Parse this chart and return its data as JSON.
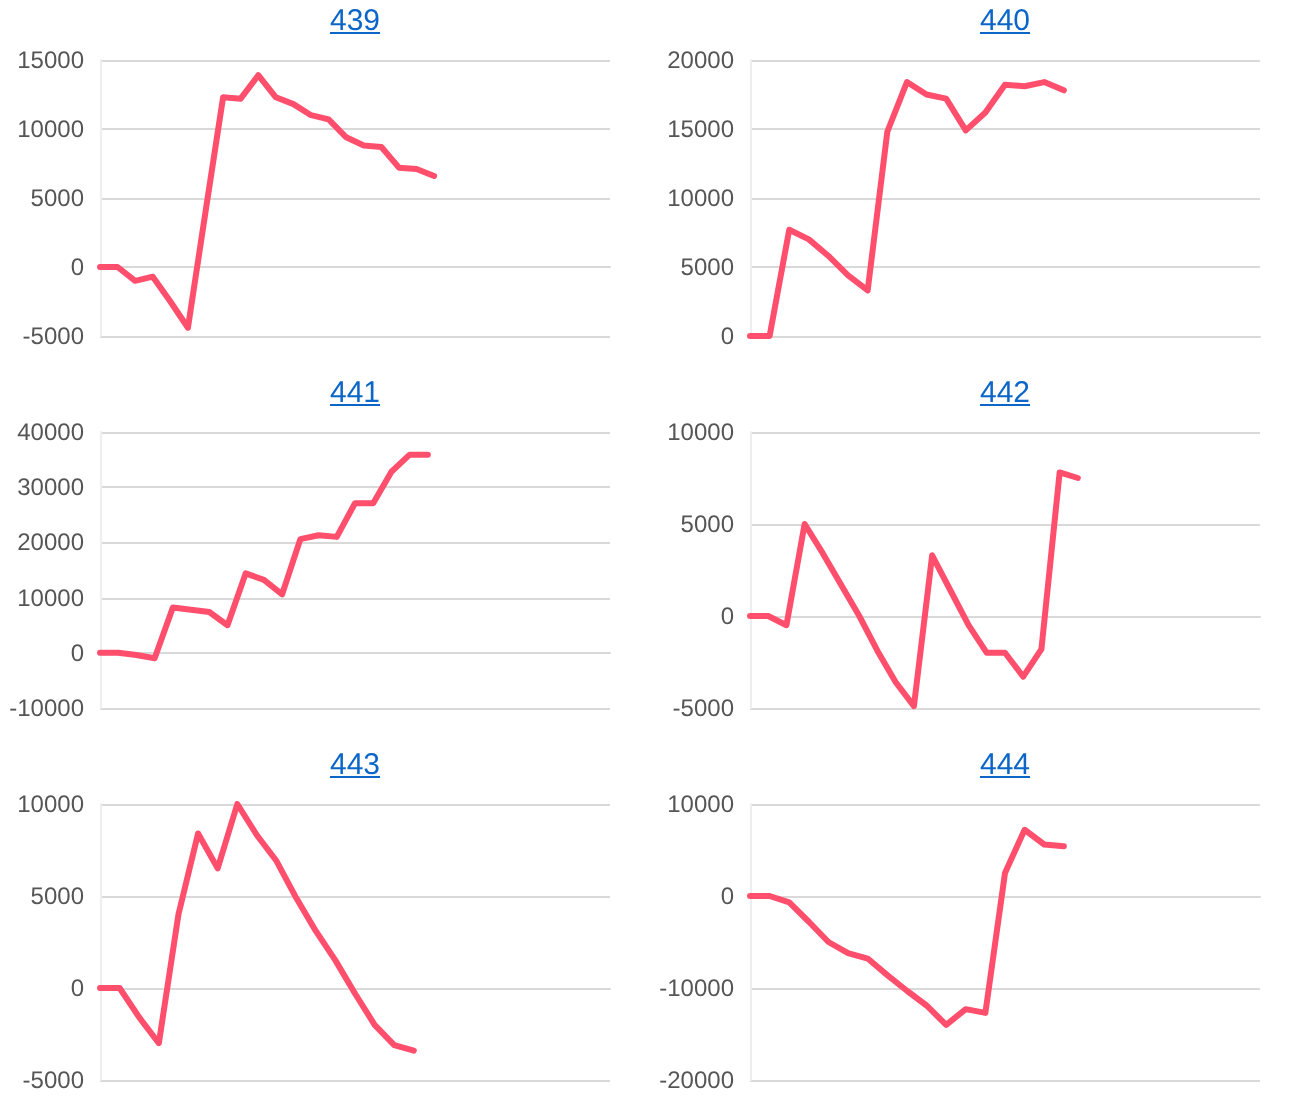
{
  "chart_data": [
    {
      "type": "line",
      "title": "439",
      "categories": [
        null,
        null,
        null,
        null,
        null,
        null,
        null,
        null,
        null,
        null,
        null,
        null,
        null,
        null,
        null,
        null,
        null,
        null,
        null,
        null,
        null,
        null,
        null,
        null,
        null,
        null,
        null,
        null,
        null,
        null
      ],
      "values": [
        0,
        0,
        -1000,
        -700,
        -2500,
        -4400,
        4000,
        12300,
        12200,
        13900,
        12300,
        11800,
        11000,
        10700,
        9400,
        8800,
        8700,
        7200,
        7100,
        6600,
        null,
        null,
        null,
        null,
        null,
        null,
        null,
        null,
        null,
        null
      ],
      "color": "#ff4f6d",
      "ylim": [
        -5000,
        15000
      ],
      "yticks": [
        -5000,
        0,
        5000,
        10000,
        15000
      ],
      "grid": "y",
      "marker": "none"
    },
    {
      "type": "line",
      "title": "440",
      "categories": [
        null,
        null,
        null,
        null,
        null,
        null,
        null,
        null,
        null,
        null,
        null,
        null,
        null,
        null,
        null,
        null,
        null,
        null,
        null,
        null,
        null,
        null,
        null,
        null,
        null,
        null,
        null
      ],
      "values": [
        0,
        0,
        7700,
        7000,
        5800,
        4400,
        3300,
        14800,
        18400,
        17500,
        17200,
        14900,
        16200,
        18200,
        18100,
        18400,
        17800,
        null,
        null,
        null,
        null,
        null,
        null,
        null,
        null,
        null,
        null
      ],
      "color": "#ff4f6d",
      "ylim": [
        0,
        20000
      ],
      "yticks": [
        0,
        5000,
        10000,
        15000,
        20000
      ],
      "grid": "y",
      "marker": "none"
    },
    {
      "type": "line",
      "title": "441",
      "categories": [
        null,
        null,
        null,
        null,
        null,
        null,
        null,
        null,
        null,
        null,
        null,
        null,
        null,
        null,
        null,
        null,
        null,
        null,
        null,
        null,
        null,
        null,
        null,
        null,
        null,
        null,
        null,
        null,
        null
      ],
      "values": [
        0,
        0,
        -400,
        -1000,
        8200,
        7800,
        7400,
        5000,
        14400,
        13200,
        10600,
        20600,
        21300,
        21000,
        27100,
        27100,
        32800,
        35900,
        35900,
        null,
        null,
        null,
        null,
        null,
        null,
        null,
        null,
        null,
        null
      ],
      "color": "#ff4f6d",
      "ylim": [
        -10000,
        40000
      ],
      "yticks": [
        -10000,
        0,
        10000,
        20000,
        30000,
        40000
      ],
      "grid": "y",
      "marker": "none"
    },
    {
      "type": "line",
      "title": "442",
      "categories": [
        null,
        null,
        null,
        null,
        null,
        null,
        null,
        null,
        null,
        null,
        null,
        null,
        null,
        null,
        null,
        null,
        null,
        null,
        null,
        null,
        null,
        null,
        null,
        null,
        null,
        null,
        null,
        null,
        null
      ],
      "values": [
        0,
        0,
        -500,
        5000,
        3400,
        1700,
        0,
        -1900,
        -3600,
        -4900,
        3300,
        1400,
        -500,
        -2000,
        -2000,
        -3300,
        -1800,
        7800,
        7500,
        null,
        null,
        null,
        null,
        null,
        null,
        null,
        null,
        null,
        null
      ],
      "color": "#ff4f6d",
      "ylim": [
        -5000,
        10000
      ],
      "yticks": [
        -5000,
        0,
        5000,
        10000
      ],
      "grid": "y",
      "marker": "none"
    },
    {
      "type": "line",
      "title": "443",
      "categories": [
        null,
        null,
        null,
        null,
        null,
        null,
        null,
        null,
        null,
        null,
        null,
        null,
        null,
        null,
        null,
        null,
        null,
        null,
        null,
        null,
        null,
        null,
        null,
        null,
        null,
        null,
        null
      ],
      "values": [
        0,
        0,
        -1600,
        -3000,
        4000,
        8400,
        6500,
        10000,
        8300,
        6900,
        4900,
        3100,
        1500,
        -300,
        -2000,
        -3100,
        -3400,
        null,
        null,
        null,
        null,
        null,
        null,
        null,
        null,
        null,
        null
      ],
      "color": "#ff4f6d",
      "ylim": [
        -5000,
        10000
      ],
      "yticks": [
        -5000,
        0,
        5000,
        10000
      ],
      "grid": "y",
      "marker": "none"
    },
    {
      "type": "line",
      "title": "444",
      "categories": [
        null,
        null,
        null,
        null,
        null,
        null,
        null,
        null,
        null,
        null,
        null,
        null,
        null,
        null,
        null,
        null,
        null,
        null,
        null,
        null,
        null,
        null,
        null,
        null,
        null,
        null,
        null
      ],
      "values": [
        0,
        0,
        -700,
        -2800,
        -5000,
        -6200,
        -6800,
        -8600,
        -10300,
        -11900,
        -14000,
        -12300,
        -12700,
        2500,
        7200,
        5600,
        5400,
        null,
        null,
        null,
        null,
        null,
        null,
        null,
        null,
        null,
        null
      ],
      "color": "#ff4f6d",
      "ylim": [
        -20000,
        10000
      ],
      "yticks": [
        -20000,
        -10000,
        0,
        10000
      ],
      "grid": "y",
      "marker": "none"
    }
  ]
}
